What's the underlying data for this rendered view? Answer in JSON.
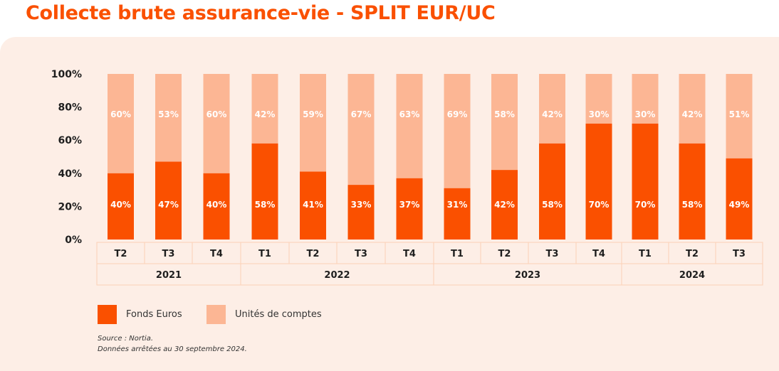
{
  "title": "Collecte brute assurance-vie - SPLIT EUR/UC",
  "colors": {
    "title": "#fa5000",
    "fonds_euros": "#fa5000",
    "unites_comptes": "#fcb694",
    "panel_bg": "#fdeee6",
    "table_border": "#fcd0b6"
  },
  "chart_data": {
    "type": "bar",
    "stacked": true,
    "title": "Collecte brute assurance-vie - SPLIT EUR/UC",
    "xlabel": "",
    "ylabel": "",
    "ylim": [
      0,
      100
    ],
    "yticks": [
      "0%",
      "20%",
      "40%",
      "60%",
      "80%",
      "100%"
    ],
    "ytick_values": [
      0,
      20,
      40,
      60,
      80,
      100
    ],
    "grid": false,
    "categories": [
      "T2",
      "T3",
      "T4",
      "T1",
      "T2",
      "T3",
      "T4",
      "T1",
      "T2",
      "T3",
      "T4",
      "T1",
      "T2",
      "T3"
    ],
    "groups": [
      {
        "label": "2021",
        "span": 3
      },
      {
        "label": "2022",
        "span": 4
      },
      {
        "label": "2023",
        "span": 4
      },
      {
        "label": "2024",
        "span": 3
      }
    ],
    "series": [
      {
        "name": "Fonds Euros",
        "values": [
          40,
          47,
          40,
          58,
          41,
          33,
          37,
          31,
          42,
          58,
          70,
          70,
          58,
          49
        ],
        "labels": [
          "40%",
          "47%",
          "40%",
          "58%",
          "41%",
          "33%",
          "37%",
          "31%",
          "42%",
          "58%",
          "70%",
          "70%",
          "58%",
          "49%"
        ]
      },
      {
        "name": "Unités de comptes",
        "values": [
          60,
          53,
          60,
          42,
          59,
          67,
          63,
          69,
          58,
          42,
          30,
          30,
          42,
          51
        ],
        "labels": [
          "60%",
          "53%",
          "60%",
          "42%",
          "59%",
          "67%",
          "63%",
          "69%",
          "58%",
          "42%",
          "30%",
          "30%",
          "42%",
          "51%"
        ]
      }
    ],
    "legend": {
      "placement": "bottom-left",
      "entries": [
        "Fonds Euros",
        "Unités de comptes"
      ]
    }
  },
  "legend": {
    "fonds_euros": "Fonds Euros",
    "unites_comptes": "Unités de comptes"
  },
  "source": {
    "line1": "Source : Nortia.",
    "line2": "Données arrêtées au 30 septembre 2024."
  }
}
